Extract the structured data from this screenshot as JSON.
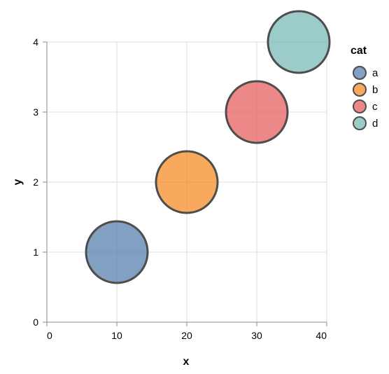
{
  "chart_data": {
    "type": "scatter",
    "title": "",
    "xlabel": "x",
    "ylabel": "y",
    "xlim": [
      0,
      40
    ],
    "ylim": [
      0,
      4
    ],
    "xticks": [
      "0",
      "10",
      "20",
      "30",
      "40"
    ],
    "yticks": [
      "0",
      "1",
      "2",
      "3",
      "4"
    ],
    "grid": true,
    "legend": {
      "title": "cat",
      "placement": "right",
      "items": [
        {
          "label": "a",
          "color": "#4c78a8"
        },
        {
          "label": "b",
          "color": "#f58518"
        },
        {
          "label": "c",
          "color": "#e45756"
        },
        {
          "label": "d",
          "color": "#72b7b2"
        }
      ]
    },
    "points": [
      {
        "cat": "a",
        "x": 10,
        "y": 1
      },
      {
        "cat": "b",
        "x": 20,
        "y": 2
      },
      {
        "cat": "c",
        "x": 30,
        "y": 3
      },
      {
        "cat": "d",
        "x": 36,
        "y": 4
      }
    ],
    "mark_stroke_color": "#4d4d4d",
    "mark_opacity": 0.7
  }
}
